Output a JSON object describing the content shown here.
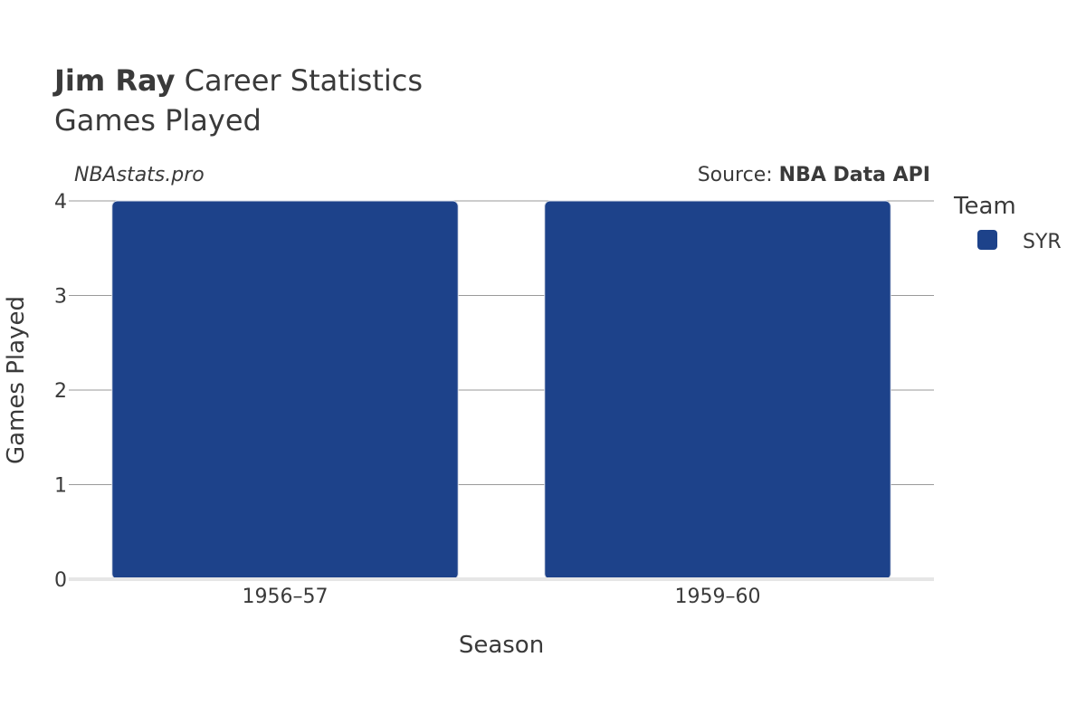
{
  "header": {
    "title_bold": "Jim Ray",
    "title_rest": " Career Statistics",
    "subtitle": "Games Played",
    "watermark": "NBAstats.pro",
    "source_prefix": "Source: ",
    "source_name": "NBA Data API"
  },
  "legend": {
    "title": "Team"
  },
  "colors": {
    "SYR": "#1d428a"
  },
  "chart_data": {
    "type": "bar",
    "categories": [
      "1956–57",
      "1959–60"
    ],
    "series": [
      {
        "name": "SYR",
        "values": [
          4,
          4
        ]
      }
    ],
    "xlabel": "Season",
    "ylabel": "Games Played",
    "ylim": [
      0,
      4
    ],
    "yticks": [
      0,
      1,
      2,
      3,
      4
    ],
    "grid": true,
    "legend_position": "right"
  }
}
